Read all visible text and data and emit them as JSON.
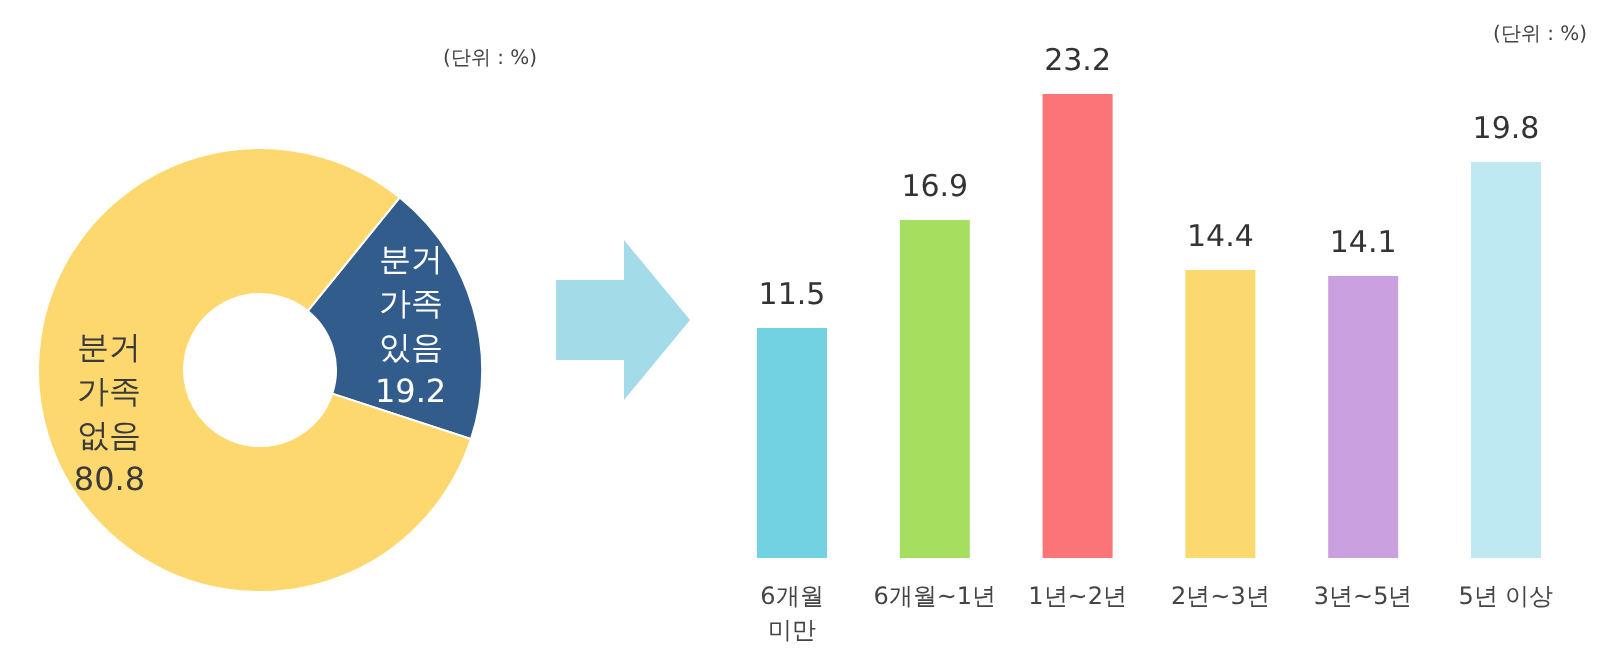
{
  "chart_data": [
    {
      "type": "donut",
      "categories": [
        "분거 가족 있음",
        "분거 가족 없음"
      ],
      "values": [
        19.2,
        80.8
      ],
      "colors": [
        "#325c8c",
        "#fcd86f"
      ],
      "data_labels": true,
      "annotations": [
        "(단위 : %)"
      ]
    },
    {
      "type": "bar",
      "categories": [
        "6개월 미만",
        "6개월~1년",
        "1년~2년",
        "2년~3년",
        "3년~5년",
        "5년 이상"
      ],
      "values": [
        11.5,
        16.9,
        23.2,
        14.4,
        14.1,
        19.8
      ],
      "colors": [
        "#72d2e2",
        "#a6de60",
        "#fa7478",
        "#fcd96f",
        "#cba0e0",
        "#bfe9f2"
      ],
      "data_labels": true,
      "annotations": [
        "(단위 : %)"
      ]
    }
  ]
}
